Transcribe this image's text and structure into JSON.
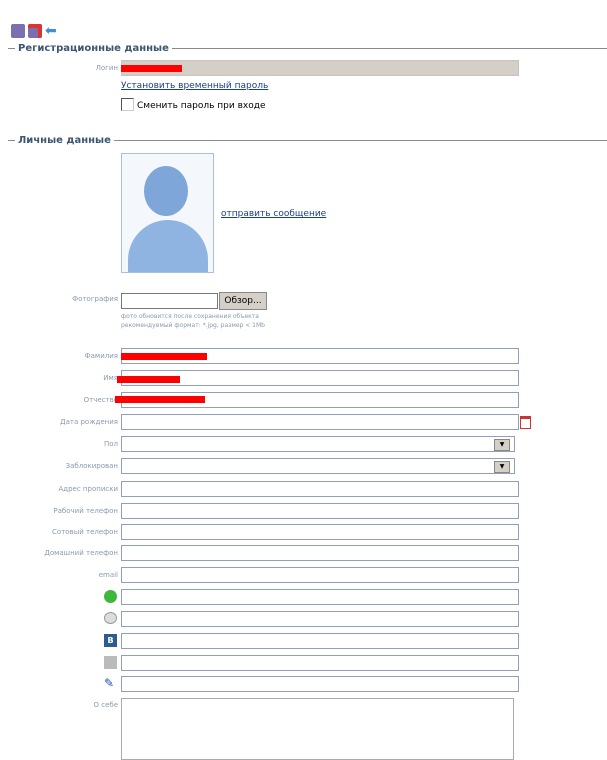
{
  "toolbar": {
    "icons": [
      "save-icon",
      "save-close-icon",
      "back-arrow-icon"
    ]
  },
  "registration": {
    "title": "Регистрационные данные",
    "login_label": "Логин",
    "temp_password_link": "Установить временный пароль",
    "change_password_label": "Сменить пароль при входе",
    "change_password_checked": false
  },
  "personal": {
    "title": "Личные данные",
    "send_message_link": "отправить сообщение",
    "photo_label": "Фотография",
    "browse_button": "Обзор...",
    "photo_hint_1": "фото обновится после сохранения объекта",
    "photo_hint_2": "рекомендуемый формат: *.jpg, размер < 1Mb",
    "fields": {
      "lastname": "Фамилия",
      "firstname": "Имя",
      "middlename": "Отчество",
      "birthdate": "Дата рождения",
      "gender": "Пол",
      "blocked": "Заблокирован",
      "address": "Адрес прописки",
      "work_phone": "Рабочий телефон",
      "mobile_phone": "Сотовый телефон",
      "home_phone": "Домашний телефон",
      "email": "email",
      "about": "О себе"
    },
    "messenger_icons": [
      "icq-icon",
      "chat-icon",
      "vkontakte-icon",
      "social-icon",
      "livejournal-pen-icon"
    ]
  },
  "colors": {
    "section_title": "#3a5670",
    "label": "#8a9ab0",
    "redaction": "#ff0000"
  }
}
